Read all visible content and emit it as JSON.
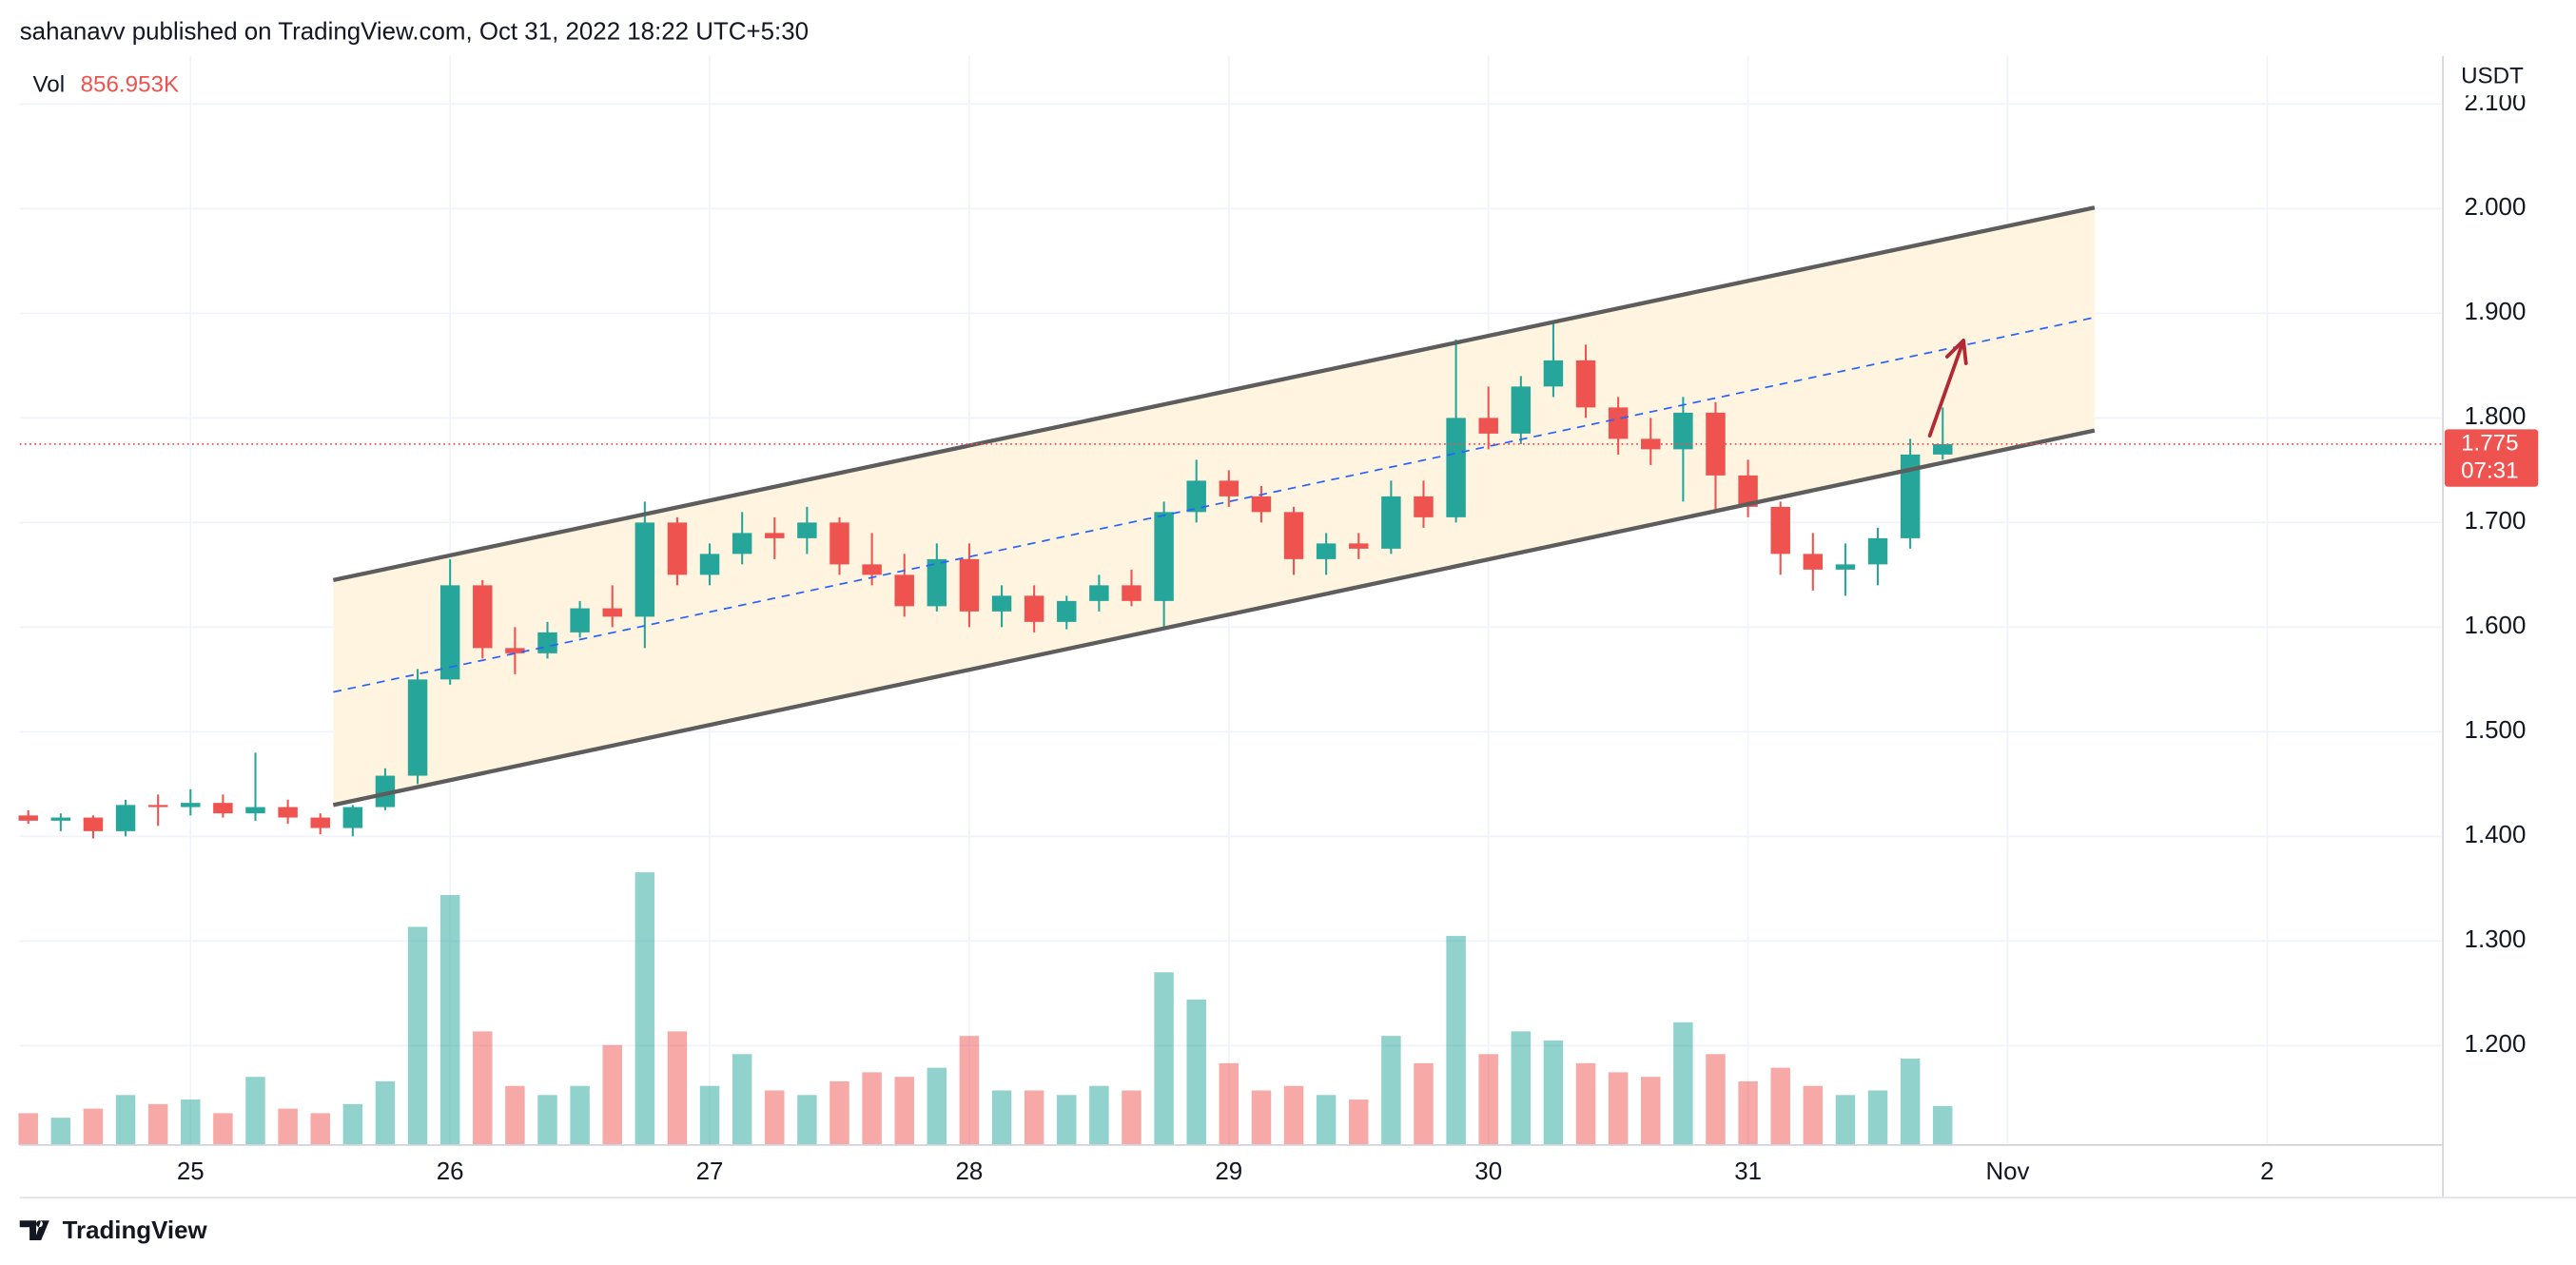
{
  "chart_data": {
    "type": "candlestick",
    "title": "sahanavv published on TradingView.com, Oct 31, 2022 18:22 UTC+5:30",
    "currency": "USDT",
    "volume_title": "Vol",
    "volume_label": "856.953K",
    "footer": "TradingView",
    "up_color": "#26a69a",
    "down_color": "#ef5350",
    "grid": true,
    "xlim": [
      24.342,
      33.677
    ],
    "xticks": [
      25,
      26,
      27,
      28,
      29,
      30,
      31,
      {
        "value": 32,
        "label": "Nov"
      },
      {
        "value": 33,
        "label": "2"
      }
    ],
    "ylim": [
      1.105,
      2.146
    ],
    "yticks": [
      {
        "value": 1.2,
        "label": "1.200"
      },
      {
        "value": 1.3,
        "label": "1.300"
      },
      {
        "value": 1.4,
        "label": "1.400"
      },
      {
        "value": 1.5,
        "label": "1.500"
      },
      {
        "value": 1.6,
        "label": "1.600"
      },
      {
        "value": 1.7,
        "label": "1.700"
      },
      {
        "value": 1.8,
        "label": "1.800"
      },
      {
        "value": 1.9,
        "label": "1.900"
      },
      {
        "value": 2.0,
        "label": "2.000"
      },
      {
        "value": 2.1,
        "label": "2.100"
      }
    ],
    "x": [
      24.375,
      24.5,
      24.625,
      24.75,
      24.875,
      25.0,
      25.125,
      25.25,
      25.375,
      25.5,
      25.625,
      25.75,
      25.875,
      26.0,
      26.125,
      26.25,
      26.375,
      26.5,
      26.625,
      26.75,
      26.875,
      27.0,
      27.125,
      27.25,
      27.375,
      27.5,
      27.625,
      27.75,
      27.875,
      28.0,
      28.125,
      28.25,
      28.375,
      28.5,
      28.625,
      28.75,
      28.875,
      29.0,
      29.125,
      29.25,
      29.375,
      29.5,
      29.625,
      29.75,
      29.875,
      30.0,
      30.125,
      30.25,
      30.375,
      30.5,
      30.625,
      30.75,
      30.875,
      31.0,
      31.125,
      31.25,
      31.375,
      31.5,
      31.625,
      31.75
    ],
    "open": [
      1.42,
      1.415,
      1.418,
      1.405,
      1.43,
      1.428,
      1.432,
      1.422,
      1.428,
      1.418,
      1.408,
      1.428,
      1.458,
      1.55,
      1.64,
      1.58,
      1.575,
      1.595,
      1.618,
      1.61,
      1.7,
      1.65,
      1.67,
      1.69,
      1.685,
      1.7,
      1.66,
      1.65,
      1.62,
      1.665,
      1.615,
      1.63,
      1.605,
      1.625,
      1.64,
      1.625,
      1.71,
      1.74,
      1.725,
      1.71,
      1.665,
      1.68,
      1.675,
      1.725,
      1.705,
      1.8,
      1.785,
      1.83,
      1.855,
      1.81,
      1.78,
      1.77,
      1.805,
      1.745,
      1.715,
      1.67,
      1.655,
      1.66,
      1.685,
      1.765
    ],
    "high": [
      1.425,
      1.422,
      1.42,
      1.435,
      1.44,
      1.445,
      1.44,
      1.48,
      1.435,
      1.422,
      1.43,
      1.465,
      1.56,
      1.665,
      1.645,
      1.6,
      1.605,
      1.625,
      1.64,
      1.72,
      1.705,
      1.68,
      1.71,
      1.705,
      1.715,
      1.705,
      1.69,
      1.67,
      1.68,
      1.68,
      1.64,
      1.64,
      1.63,
      1.65,
      1.655,
      1.72,
      1.76,
      1.75,
      1.735,
      1.715,
      1.69,
      1.69,
      1.74,
      1.74,
      1.875,
      1.83,
      1.84,
      1.89,
      1.87,
      1.82,
      1.8,
      1.82,
      1.815,
      1.76,
      1.72,
      1.69,
      1.68,
      1.695,
      1.78,
      1.81
    ],
    "low": [
      1.412,
      1.405,
      1.398,
      1.4,
      1.41,
      1.42,
      1.418,
      1.415,
      1.412,
      1.402,
      1.4,
      1.425,
      1.45,
      1.545,
      1.57,
      1.555,
      1.57,
      1.59,
      1.6,
      1.58,
      1.64,
      1.64,
      1.66,
      1.665,
      1.67,
      1.65,
      1.64,
      1.61,
      1.615,
      1.6,
      1.6,
      1.595,
      1.598,
      1.615,
      1.62,
      1.6,
      1.7,
      1.715,
      1.7,
      1.65,
      1.65,
      1.665,
      1.67,
      1.695,
      1.7,
      1.77,
      1.775,
      1.82,
      1.8,
      1.765,
      1.755,
      1.72,
      1.71,
      1.705,
      1.65,
      1.635,
      1.63,
      1.64,
      1.675,
      1.76
    ],
    "close": [
      1.415,
      1.418,
      1.405,
      1.43,
      1.428,
      1.432,
      1.422,
      1.428,
      1.418,
      1.408,
      1.428,
      1.458,
      1.55,
      1.64,
      1.58,
      1.575,
      1.595,
      1.618,
      1.61,
      1.7,
      1.65,
      1.67,
      1.69,
      1.685,
      1.7,
      1.66,
      1.65,
      1.62,
      1.665,
      1.615,
      1.63,
      1.605,
      1.625,
      1.64,
      1.625,
      1.71,
      1.74,
      1.725,
      1.71,
      1.665,
      1.68,
      1.675,
      1.725,
      1.705,
      1.8,
      1.785,
      1.83,
      1.855,
      1.81,
      1.78,
      1.77,
      1.805,
      1.745,
      1.715,
      1.67,
      1.655,
      1.66,
      1.685,
      1.765,
      1.775
    ],
    "volume": [
      700,
      600,
      800,
      1100,
      900,
      1000,
      700,
      1500,
      800,
      700,
      900,
      1400,
      4800,
      5500,
      2500,
      1300,
      1100,
      1300,
      2200,
      6000,
      2500,
      1300,
      2000,
      1200,
      1100,
      1400,
      1600,
      1500,
      1700,
      2400,
      1200,
      1200,
      1100,
      1300,
      1200,
      3800,
      3200,
      1800,
      1200,
      1300,
      1100,
      1000,
      2400,
      1800,
      4600,
      2000,
      2500,
      2300,
      1800,
      1600,
      1500,
      2700,
      2000,
      1400,
      1700,
      1300,
      1100,
      1200,
      1900,
      856.953
    ],
    "channel": {
      "upper": [
        [
          25.55,
          1.645
        ],
        [
          32.335,
          2.001
        ]
      ],
      "lower": [
        [
          25.55,
          1.43
        ],
        [
          32.335,
          1.788
        ]
      ],
      "middle": [
        [
          25.55,
          1.538
        ],
        [
          32.335,
          1.896
        ]
      ],
      "fill": "#fff4e0",
      "line_color": "#5d5d5d",
      "middle_color": "#2962ff"
    },
    "arrow": {
      "points": [
        [
          31.7,
          1.783
        ],
        [
          31.83,
          1.874
        ]
      ],
      "color": "#b22833"
    },
    "last_price": {
      "value": 1.775,
      "label": "1.775"
    },
    "countdown": "07:31"
  }
}
